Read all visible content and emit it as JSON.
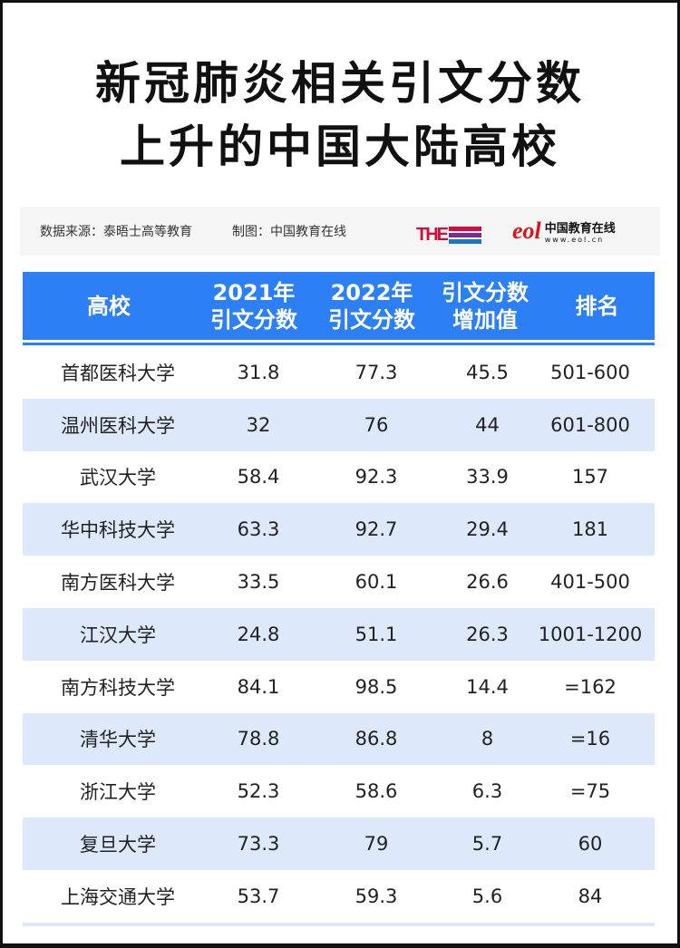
{
  "title": {
    "line1": "新冠肺炎相关引文分数",
    "line2": "上升的中国大陆高校"
  },
  "info": {
    "source": "数据来源：泰晤士高等教育",
    "maker": "制图：中国教育在线",
    "the_logo": "THE WORLD UNIVERSITY RANKINGS",
    "eol_logo": "eol",
    "eol_name": "中国教育在线",
    "eol_url": "www.eol.cn"
  },
  "table": {
    "headers": [
      [
        "高校"
      ],
      [
        "2021年",
        "引文分数"
      ],
      [
        "2022年",
        "引文分数"
      ],
      [
        "引文分数",
        "增加值"
      ],
      [
        "排名"
      ]
    ],
    "rows": [
      [
        "首都医科大学",
        "31.8",
        "77.3",
        "45.5",
        "501-600"
      ],
      [
        "温州医科大学",
        "32",
        "76",
        "44",
        "601-800"
      ],
      [
        "武汉大学",
        "58.4",
        "92.3",
        "33.9",
        "157"
      ],
      [
        "华中科技大学",
        "63.3",
        "92.7",
        "29.4",
        "181"
      ],
      [
        "南方医科大学",
        "33.5",
        "60.1",
        "26.6",
        "401-500"
      ],
      [
        "江汉大学",
        "24.8",
        "51.1",
        "26.3",
        "1001-1200"
      ],
      [
        "南方科技大学",
        "84.1",
        "98.5",
        "14.4",
        "=162"
      ],
      [
        "清华大学",
        "78.8",
        "86.8",
        "8",
        "=16"
      ],
      [
        "浙江大学",
        "52.3",
        "58.6",
        "6.3",
        "=75"
      ],
      [
        "复旦大学",
        "73.3",
        "79",
        "5.7",
        "60"
      ],
      [
        "上海交通大学",
        "53.7",
        "59.3",
        "5.6",
        "84"
      ]
    ]
  },
  "colors": {
    "header": "#2d7ff5",
    "stripe": "#dde8fb"
  }
}
